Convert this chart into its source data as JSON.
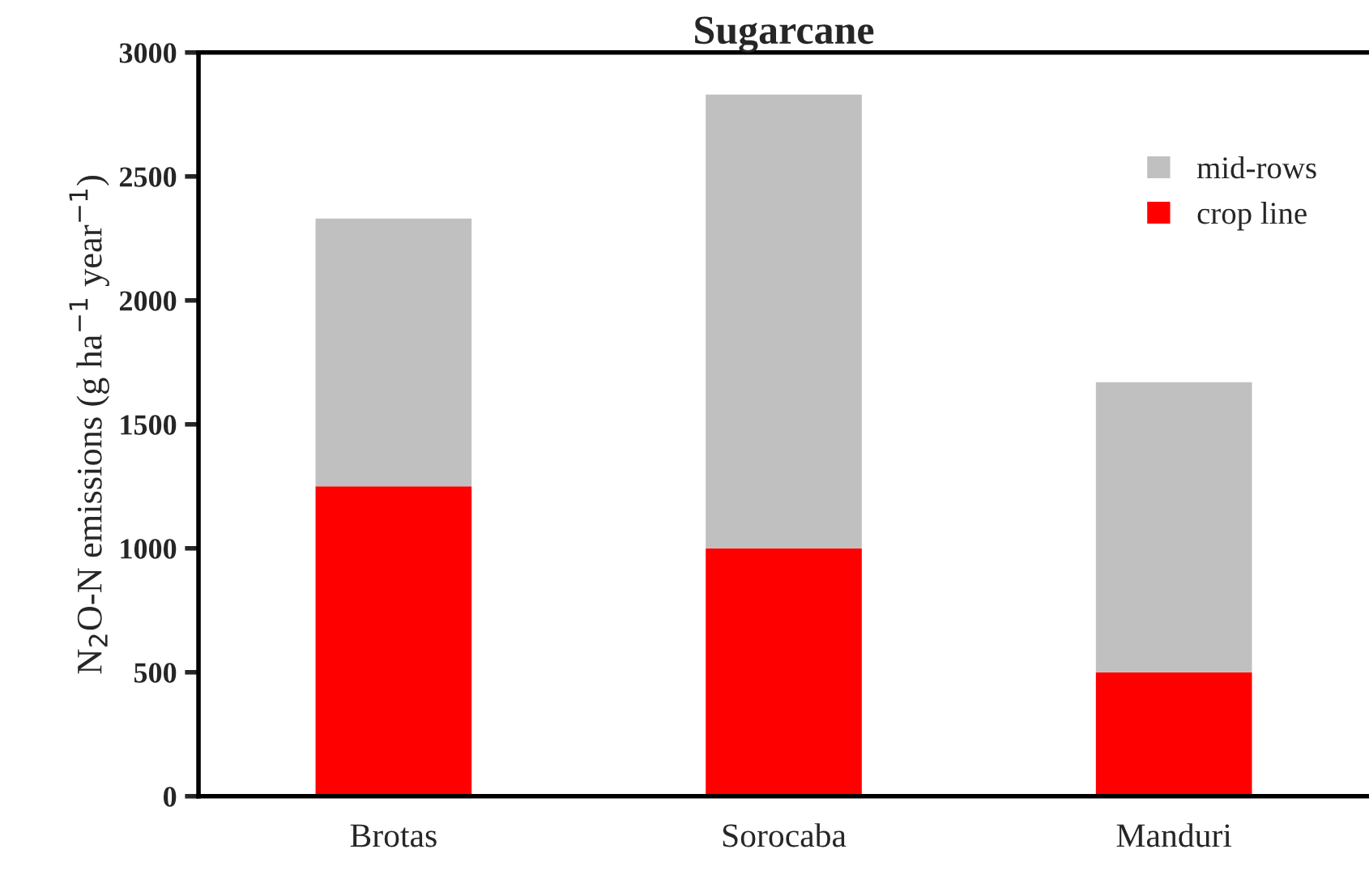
{
  "chart_data": {
    "type": "bar",
    "title": "Sugarcane",
    "ylabel": "N$_{2}$O-N emissions (g ha$^{−1}$ year$^{−1}$)",
    "categories": [
      "Brotas",
      "Sorocaba",
      "Manduri"
    ],
    "stacked": true,
    "series": [
      {
        "name": "crop line",
        "color": "#ff0000",
        "values": [
          1250,
          1000,
          500
        ]
      },
      {
        "name": "mid-rows",
        "color": "#c0c0c0",
        "values": [
          1080,
          1830,
          1170
        ]
      }
    ],
    "ylim": [
      0,
      3000
    ],
    "yticks": [
      0,
      500,
      1000,
      1500,
      2000,
      2500,
      3000
    ],
    "grid": false,
    "legend": "top right"
  }
}
